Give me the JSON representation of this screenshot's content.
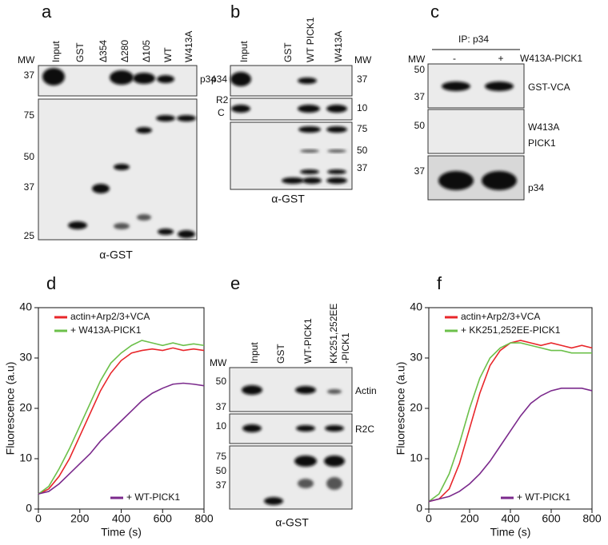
{
  "panels": {
    "a": {
      "label": "a",
      "lanes": [
        "Input",
        "GST",
        "Δ354",
        "Δ280",
        "Δ105",
        "WT",
        "W413A"
      ],
      "mw_label": "MW",
      "top_mw": [
        37
      ],
      "top_band": "p34",
      "bottom_mw": [
        75,
        50,
        37,
        25
      ],
      "footer": "α-GST"
    },
    "b": {
      "label": "b",
      "lanes": [
        "Input",
        "GST",
        "WT PICK1",
        "W413A"
      ],
      "mw_label": "MW",
      "top_band": "p34",
      "top_mw": [
        37
      ],
      "middle_band": [
        "R2",
        "C"
      ],
      "middle_mw": [
        10
      ],
      "bottom_mw": [
        75,
        50,
        37
      ],
      "footer": "α-GST"
    },
    "c": {
      "label": "c",
      "header": "IP: p34",
      "mw_label": "MW",
      "lanes": [
        "-",
        "+"
      ],
      "lane_title": "W413A-PICK1",
      "top_mw": [
        50,
        37
      ],
      "top_band": "GST-VCA",
      "middle_mw": [
        50
      ],
      "middle_band": [
        "W413A",
        "PICK1"
      ],
      "bottom_mw": [
        37
      ],
      "bottom_band": "p34"
    },
    "e": {
      "label": "e",
      "lanes": [
        "Input",
        "GST",
        "WT-PICK1",
        [
          "KK251,252EE",
          "-PICK1"
        ]
      ],
      "mw_label": "MW",
      "top_mw": [
        50,
        37
      ],
      "top_band": "Actin",
      "middle_mw": [
        10
      ],
      "middle_band": "R2C",
      "bottom_mw": [
        75,
        50,
        37
      ],
      "footer": "α-GST"
    }
  },
  "chart_data": [
    {
      "type": "line",
      "panel_label": "d",
      "x_label": "Time (s)",
      "y_label": "Fluorescence (a.u)",
      "x": [
        0,
        50,
        100,
        150,
        200,
        250,
        300,
        350,
        400,
        450,
        500,
        550,
        600,
        650,
        700,
        750,
        800
      ],
      "series": [
        {
          "name": "actin+Arp2/3+VCA",
          "color": "#e8262a",
          "values": [
            3,
            4,
            6.5,
            10,
            14.5,
            19,
            23.5,
            27,
            29.5,
            31,
            31.5,
            31.8,
            31.5,
            32,
            31.5,
            31.8,
            31.5
          ]
        },
        {
          "name": "+ W413A-PICK1",
          "color": "#6cc04a",
          "values": [
            3,
            4.5,
            8,
            12,
            16.5,
            21,
            25.5,
            29,
            31,
            32.5,
            33.5,
            33,
            32.5,
            33,
            32.5,
            32.8,
            32.5
          ]
        },
        {
          "name": "+ WT-PICK1",
          "color": "#7b2a8c",
          "values": [
            3,
            3.5,
            5,
            7,
            9,
            11,
            13.5,
            15.5,
            17.5,
            19.5,
            21.5,
            23,
            24,
            24.8,
            25,
            24.8,
            24.5
          ]
        }
      ],
      "xlim": [
        0,
        800
      ],
      "ylim": [
        0,
        40
      ],
      "xticks": [
        0,
        200,
        400,
        600,
        800
      ],
      "yticks": [
        0,
        10,
        20,
        30,
        40
      ]
    },
    {
      "type": "line",
      "panel_label": "f",
      "x_label": "Time (s)",
      "y_label": "Fluorescence (a.u)",
      "x": [
        0,
        50,
        100,
        150,
        200,
        250,
        300,
        350,
        400,
        450,
        500,
        550,
        600,
        650,
        700,
        750,
        800
      ],
      "series": [
        {
          "name": "actin+Arp2/3+VCA",
          "color": "#e8262a",
          "values": [
            1.5,
            2,
            4,
            9,
            16,
            23,
            28.5,
            31.5,
            33,
            33.5,
            33,
            32.5,
            33,
            32.5,
            32,
            32.5,
            32
          ]
        },
        {
          "name": "+ KK251,252EE-PICK1",
          "color": "#6cc04a",
          "values": [
            1.5,
            3,
            7,
            13,
            20,
            26,
            30,
            32,
            33,
            33,
            32.5,
            32,
            31.5,
            31.5,
            31,
            31,
            31
          ]
        },
        {
          "name": "+ WT-PICK1",
          "color": "#7b2a8c",
          "values": [
            1.5,
            2,
            2.5,
            3.5,
            5,
            7,
            9.5,
            12.5,
            15.5,
            18.5,
            21,
            22.5,
            23.5,
            24,
            24,
            24,
            23.5
          ]
        }
      ],
      "xlim": [
        0,
        800
      ],
      "ylim": [
        0,
        40
      ],
      "xticks": [
        0,
        200,
        400,
        600,
        800
      ],
      "yticks": [
        0,
        10,
        20,
        30,
        40
      ]
    }
  ]
}
